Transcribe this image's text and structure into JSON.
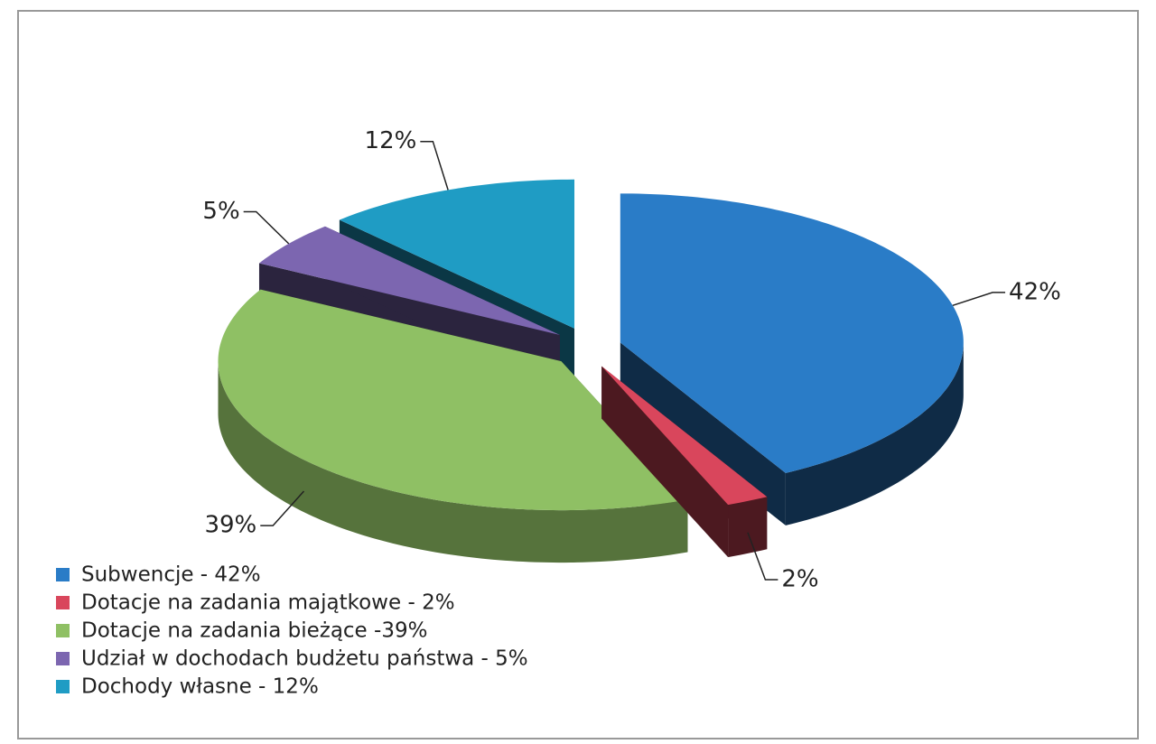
{
  "chart_data": {
    "type": "pie3d",
    "categories": [
      "Subwencje - 42%",
      "Dotacje na zadania majątkowe - 2%",
      "Dotacje na zadania bieżące -39%",
      "Udział w dochodach budżetu państwa - 5%",
      "Dochody własne - 12%"
    ],
    "values": [
      42,
      2,
      39,
      5,
      12
    ],
    "value_labels": [
      "42%",
      "2%",
      "39%",
      "5%",
      "12%"
    ],
    "colors": [
      "#2a7cc7",
      "#d9465c",
      "#8fc064",
      "#7c66b0",
      "#1f9cc4"
    ],
    "legend": "bottom-left"
  }
}
